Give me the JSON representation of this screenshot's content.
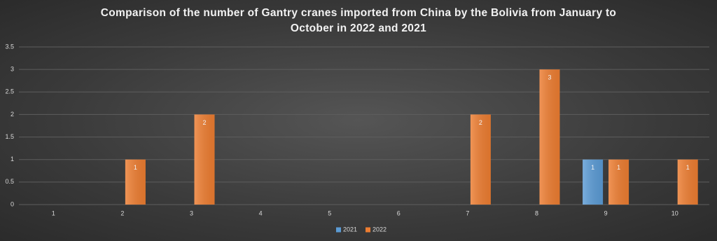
{
  "chart_data": {
    "type": "bar",
    "title": "Comparison of the number of Gantry cranes imported from China by the Bolivia from January to October in 2022 and 2021",
    "categories": [
      "1",
      "2",
      "3",
      "4",
      "5",
      "6",
      "7",
      "8",
      "9",
      "10"
    ],
    "series": [
      {
        "name": "2021",
        "color": "#5b9bd5",
        "values": [
          null,
          null,
          null,
          null,
          null,
          null,
          null,
          null,
          1,
          null
        ]
      },
      {
        "name": "2022",
        "color": "#ed7d31",
        "values": [
          null,
          1,
          2,
          null,
          null,
          null,
          2,
          3,
          1,
          1
        ]
      }
    ],
    "ylim": [
      0,
      3.5
    ],
    "yticks": [
      0,
      0.5,
      1,
      1.5,
      2,
      2.5,
      3,
      3.5
    ],
    "grid": true,
    "legend": "bottom"
  }
}
